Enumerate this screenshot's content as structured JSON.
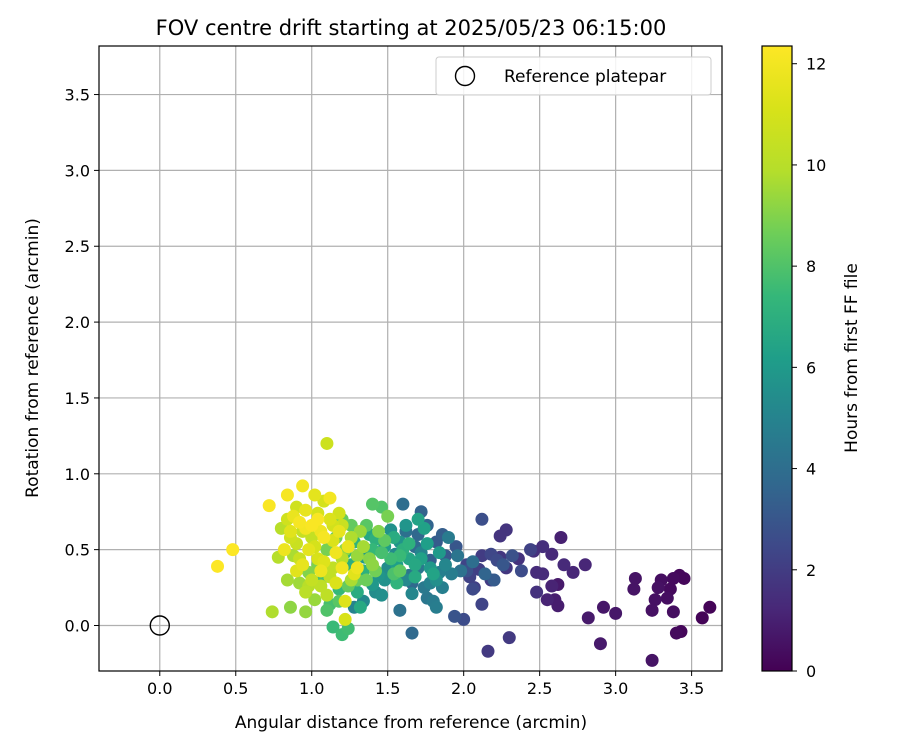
{
  "chart_data": {
    "type": "scatter",
    "title": "FOV centre drift starting at 2025/05/23 06:15:00",
    "xlabel": "Angular distance from reference (arcmin)",
    "ylabel": "Rotation from reference (arcmin)",
    "xlim": [
      -0.4,
      3.7
    ],
    "ylim": [
      -0.3,
      3.82
    ],
    "xticks": [
      0.0,
      0.5,
      1.0,
      1.5,
      2.0,
      2.5,
      3.0,
      3.5
    ],
    "yticks": [
      0.0,
      0.5,
      1.0,
      1.5,
      2.0,
      2.5,
      3.0,
      3.5
    ],
    "grid": true,
    "legend": {
      "position": "top-right",
      "entries": [
        {
          "label": "Reference platepar",
          "marker": "open-circle"
        }
      ]
    },
    "reference_point": {
      "x": 0.0,
      "y": 0.0
    },
    "colorbar": {
      "label": "Hours from first FF file",
      "colormap": "viridis",
      "range": [
        0,
        12.35
      ],
      "ticks": [
        0,
        2,
        4,
        6,
        8,
        10,
        12
      ]
    },
    "points": [
      {
        "x": 3.62,
        "y": 0.12,
        "c": 0.1
      },
      {
        "x": 3.57,
        "y": 0.05,
        "c": 0.1
      },
      {
        "x": 3.45,
        "y": 0.31,
        "c": 0.2
      },
      {
        "x": 3.42,
        "y": 0.33,
        "c": 0.2
      },
      {
        "x": 3.43,
        "y": -0.04,
        "c": 0.2
      },
      {
        "x": 3.4,
        "y": -0.05,
        "c": 0.3
      },
      {
        "x": 3.38,
        "y": 0.31,
        "c": 0.3
      },
      {
        "x": 3.36,
        "y": 0.24,
        "c": 0.3
      },
      {
        "x": 3.38,
        "y": 0.09,
        "c": 0.4
      },
      {
        "x": 3.34,
        "y": 0.18,
        "c": 0.4
      },
      {
        "x": 3.3,
        "y": 0.3,
        "c": 0.4
      },
      {
        "x": 3.28,
        "y": 0.25,
        "c": 0.5
      },
      {
        "x": 3.26,
        "y": 0.17,
        "c": 0.5
      },
      {
        "x": 3.24,
        "y": 0.1,
        "c": 0.5
      },
      {
        "x": 3.24,
        "y": -0.23,
        "c": 0.6
      },
      {
        "x": 3.13,
        "y": 0.31,
        "c": 0.6
      },
      {
        "x": 3.12,
        "y": 0.24,
        "c": 0.6
      },
      {
        "x": 3.0,
        "y": 0.08,
        "c": 0.7
      },
      {
        "x": 2.92,
        "y": 0.12,
        "c": 0.7
      },
      {
        "x": 2.9,
        "y": -0.12,
        "c": 0.8
      },
      {
        "x": 2.82,
        "y": 0.05,
        "c": 0.8
      },
      {
        "x": 2.62,
        "y": 0.27,
        "c": 0.8
      },
      {
        "x": 2.62,
        "y": 0.13,
        "c": 0.9
      },
      {
        "x": 2.6,
        "y": 0.17,
        "c": 0.9
      },
      {
        "x": 2.64,
        "y": 0.58,
        "c": 1.0
      },
      {
        "x": 2.58,
        "y": 0.26,
        "c": 1.1
      },
      {
        "x": 2.55,
        "y": 0.17,
        "c": 1.1
      },
      {
        "x": 2.8,
        "y": 0.4,
        "c": 1.2
      },
      {
        "x": 2.72,
        "y": 0.35,
        "c": 1.2
      },
      {
        "x": 2.66,
        "y": 0.4,
        "c": 1.3
      },
      {
        "x": 2.58,
        "y": 0.47,
        "c": 1.3
      },
      {
        "x": 2.52,
        "y": 0.34,
        "c": 1.4
      },
      {
        "x": 2.48,
        "y": 0.35,
        "c": 1.4
      },
      {
        "x": 2.52,
        "y": 0.52,
        "c": 1.5
      },
      {
        "x": 2.46,
        "y": 0.49,
        "c": 1.5
      },
      {
        "x": 2.48,
        "y": 0.22,
        "c": 1.6
      },
      {
        "x": 2.36,
        "y": 0.44,
        "c": 1.6
      },
      {
        "x": 2.28,
        "y": 0.63,
        "c": 1.7
      },
      {
        "x": 2.24,
        "y": 0.59,
        "c": 1.7
      },
      {
        "x": 2.28,
        "y": 0.38,
        "c": 1.8
      },
      {
        "x": 2.24,
        "y": 0.45,
        "c": 1.8
      },
      {
        "x": 2.3,
        "y": -0.08,
        "c": 1.9
      },
      {
        "x": 2.16,
        "y": -0.17,
        "c": 1.9
      },
      {
        "x": 2.18,
        "y": 0.3,
        "c": 2.0
      },
      {
        "x": 2.12,
        "y": 0.46,
        "c": 2.0
      },
      {
        "x": 2.1,
        "y": 0.37,
        "c": 2.1
      },
      {
        "x": 2.07,
        "y": 0.25,
        "c": 2.1
      },
      {
        "x": 2.04,
        "y": 0.32,
        "c": 2.2
      },
      {
        "x": 2.02,
        "y": 0.4,
        "c": 2.3
      },
      {
        "x": 2.12,
        "y": 0.14,
        "c": 2.3
      },
      {
        "x": 2.18,
        "y": 0.47,
        "c": 2.4
      },
      {
        "x": 2.22,
        "y": 0.43,
        "c": 2.5
      },
      {
        "x": 2.06,
        "y": 0.24,
        "c": 2.5
      },
      {
        "x": 2.0,
        "y": 0.04,
        "c": 2.6
      },
      {
        "x": 2.12,
        "y": 0.7,
        "c": 2.7
      },
      {
        "x": 2.02,
        "y": 0.36,
        "c": 2.8
      },
      {
        "x": 1.94,
        "y": 0.06,
        "c": 2.9
      },
      {
        "x": 1.95,
        "y": 0.52,
        "c": 3.0
      },
      {
        "x": 1.88,
        "y": 0.46,
        "c": 3.1
      },
      {
        "x": 1.82,
        "y": 0.55,
        "c": 3.2
      },
      {
        "x": 1.86,
        "y": 0.6,
        "c": 3.3
      },
      {
        "x": 1.78,
        "y": 0.43,
        "c": 3.4
      },
      {
        "x": 1.72,
        "y": 0.75,
        "c": 3.5
      },
      {
        "x": 1.76,
        "y": 0.66,
        "c": 3.6
      },
      {
        "x": 1.7,
        "y": 0.6,
        "c": 3.7
      },
      {
        "x": 1.66,
        "y": -0.05,
        "c": 3.8
      },
      {
        "x": 1.68,
        "y": 0.52,
        "c": 3.9
      },
      {
        "x": 1.6,
        "y": 0.8,
        "c": 4.0
      },
      {
        "x": 1.62,
        "y": 0.62,
        "c": 4.1
      },
      {
        "x": 1.58,
        "y": 0.1,
        "c": 4.2
      },
      {
        "x": 1.64,
        "y": 0.33,
        "c": 4.3
      },
      {
        "x": 1.7,
        "y": 0.38,
        "c": 4.4
      },
      {
        "x": 1.74,
        "y": 0.25,
        "c": 4.5
      },
      {
        "x": 1.8,
        "y": 0.16,
        "c": 4.6
      },
      {
        "x": 1.82,
        "y": 0.12,
        "c": 4.7
      },
      {
        "x": 1.84,
        "y": 0.35,
        "c": 4.8
      },
      {
        "x": 1.78,
        "y": 0.28,
        "c": 4.9
      },
      {
        "x": 1.72,
        "y": 0.48,
        "c": 5.0
      },
      {
        "x": 1.66,
        "y": 0.21,
        "c": 5.1
      },
      {
        "x": 1.62,
        "y": 0.3,
        "c": 5.2
      },
      {
        "x": 1.55,
        "y": 0.47,
        "c": 5.3
      },
      {
        "x": 1.5,
        "y": 0.38,
        "c": 5.4
      },
      {
        "x": 1.46,
        "y": 0.2,
        "c": 5.5
      },
      {
        "x": 1.52,
        "y": 0.63,
        "c": 5.6
      },
      {
        "x": 1.58,
        "y": 0.55,
        "c": 5.7
      },
      {
        "x": 1.44,
        "y": 0.33,
        "c": 5.8
      },
      {
        "x": 1.4,
        "y": 0.27,
        "c": 5.9
      },
      {
        "x": 1.35,
        "y": 0.45,
        "c": 6.0
      },
      {
        "x": 1.48,
        "y": 0.52,
        "c": 6.1
      },
      {
        "x": 1.56,
        "y": 0.4,
        "c": 6.2
      },
      {
        "x": 1.74,
        "y": 0.64,
        "c": 6.3
      },
      {
        "x": 1.8,
        "y": 0.34,
        "c": 6.4
      },
      {
        "x": 1.64,
        "y": 0.44,
        "c": 6.5
      },
      {
        "x": 1.38,
        "y": 0.6,
        "c": 6.6
      },
      {
        "x": 1.32,
        "y": 0.12,
        "c": 6.7
      },
      {
        "x": 1.3,
        "y": 0.22,
        "c": 6.8
      },
      {
        "x": 1.26,
        "y": 0.4,
        "c": 6.9
      },
      {
        "x": 1.42,
        "y": 0.57,
        "c": 7.0
      },
      {
        "x": 1.34,
        "y": 0.36,
        "c": 7.1
      },
      {
        "x": 1.28,
        "y": 0.55,
        "c": 7.2
      },
      {
        "x": 1.22,
        "y": 0.48,
        "c": 7.3
      },
      {
        "x": 1.18,
        "y": 0.24,
        "c": 7.4
      },
      {
        "x": 1.14,
        "y": -0.01,
        "c": 7.5
      },
      {
        "x": 1.2,
        "y": -0.06,
        "c": 7.6
      },
      {
        "x": 1.24,
        "y": -0.02,
        "c": 7.7
      },
      {
        "x": 1.12,
        "y": 0.14,
        "c": 7.8
      },
      {
        "x": 1.08,
        "y": 0.32,
        "c": 7.9
      },
      {
        "x": 1.46,
        "y": 0.78,
        "c": 8.0
      },
      {
        "x": 1.4,
        "y": 0.8,
        "c": 8.1
      },
      {
        "x": 1.36,
        "y": 0.66,
        "c": 8.2
      },
      {
        "x": 1.58,
        "y": 0.36,
        "c": 8.3
      },
      {
        "x": 1.26,
        "y": 0.66,
        "c": 8.4
      },
      {
        "x": 1.2,
        "y": 0.7,
        "c": 8.5
      },
      {
        "x": 1.3,
        "y": 0.3,
        "c": 8.6
      },
      {
        "x": 1.16,
        "y": 0.58,
        "c": 8.7
      },
      {
        "x": 1.1,
        "y": 0.5,
        "c": 8.8
      },
      {
        "x": 1.04,
        "y": 0.4,
        "c": 8.9
      },
      {
        "x": 0.98,
        "y": 0.35,
        "c": 9.0
      },
      {
        "x": 1.22,
        "y": 0.5,
        "c": 9.1
      },
      {
        "x": 0.86,
        "y": 0.12,
        "c": 9.2
      },
      {
        "x": 0.96,
        "y": 0.09,
        "c": 9.3
      },
      {
        "x": 1.02,
        "y": 0.17,
        "c": 9.4
      },
      {
        "x": 0.92,
        "y": 0.28,
        "c": 9.5
      },
      {
        "x": 0.84,
        "y": 0.3,
        "c": 9.6
      },
      {
        "x": 0.88,
        "y": 0.46,
        "c": 9.7
      },
      {
        "x": 0.74,
        "y": 0.09,
        "c": 9.8
      },
      {
        "x": 0.78,
        "y": 0.45,
        "c": 9.9
      },
      {
        "x": 0.8,
        "y": 0.64,
        "c": 10.0
      },
      {
        "x": 0.96,
        "y": 0.22,
        "c": 10.1
      },
      {
        "x": 1.06,
        "y": 0.26,
        "c": 10.2
      },
      {
        "x": 1.12,
        "y": 0.32,
        "c": 10.3
      },
      {
        "x": 1.0,
        "y": 0.58,
        "c": 10.4
      },
      {
        "x": 0.94,
        "y": 0.62,
        "c": 10.5
      },
      {
        "x": 0.9,
        "y": 0.54,
        "c": 10.6
      },
      {
        "x": 1.1,
        "y": 1.2,
        "c": 10.7
      },
      {
        "x": 0.84,
        "y": 0.7,
        "c": 10.8
      },
      {
        "x": 1.18,
        "y": 0.74,
        "c": 10.9
      },
      {
        "x": 1.08,
        "y": 0.82,
        "c": 11.0
      },
      {
        "x": 1.04,
        "y": 0.44,
        "c": 11.1
      },
      {
        "x": 1.14,
        "y": 0.56,
        "c": 11.2
      },
      {
        "x": 1.22,
        "y": 0.16,
        "c": 11.3
      },
      {
        "x": 1.28,
        "y": 0.34,
        "c": 11.4
      },
      {
        "x": 1.02,
        "y": 0.86,
        "c": 11.5
      },
      {
        "x": 0.96,
        "y": 0.76,
        "c": 11.6
      },
      {
        "x": 0.88,
        "y": 0.72,
        "c": 11.7
      },
      {
        "x": 0.82,
        "y": 0.5,
        "c": 11.8
      },
      {
        "x": 1.06,
        "y": 0.62,
        "c": 11.9
      },
      {
        "x": 0.94,
        "y": 0.92,
        "c": 12.0
      },
      {
        "x": 0.84,
        "y": 0.86,
        "c": 12.1
      },
      {
        "x": 0.72,
        "y": 0.79,
        "c": 12.2
      },
      {
        "x": 0.48,
        "y": 0.5,
        "c": 12.3
      },
      {
        "x": 0.38,
        "y": 0.39,
        "c": 12.3
      },
      {
        "x": 1.0,
        "y": 0.66,
        "c": 12.2
      },
      {
        "x": 0.92,
        "y": 0.68,
        "c": 12.1
      },
      {
        "x": 1.12,
        "y": 0.84,
        "c": 12.0
      },
      {
        "x": 1.2,
        "y": 0.38,
        "c": 11.9
      },
      {
        "x": 1.3,
        "y": 0.38,
        "c": 11.8
      },
      {
        "x": 1.24,
        "y": 0.52,
        "c": 11.7
      },
      {
        "x": 1.18,
        "y": 0.62,
        "c": 11.6
      },
      {
        "x": 0.98,
        "y": 0.5,
        "c": 11.5
      },
      {
        "x": 0.9,
        "y": 0.36,
        "c": 11.4
      },
      {
        "x": 1.08,
        "y": 0.42,
        "c": 11.3
      },
      {
        "x": 1.16,
        "y": 0.28,
        "c": 11.2
      },
      {
        "x": 1.22,
        "y": 0.04,
        "c": 11.1
      },
      {
        "x": 1.04,
        "y": 0.74,
        "c": 11.0
      },
      {
        "x": 1.14,
        "y": 0.66,
        "c": 10.9
      },
      {
        "x": 0.86,
        "y": 0.58,
        "c": 10.8
      },
      {
        "x": 0.92,
        "y": 0.44,
        "c": 10.6
      },
      {
        "x": 1.0,
        "y": 0.3,
        "c": 10.4
      },
      {
        "x": 1.1,
        "y": 0.2,
        "c": 10.2
      },
      {
        "x": 1.2,
        "y": 0.44,
        "c": 10.0
      },
      {
        "x": 1.26,
        "y": 0.58,
        "c": 9.8
      },
      {
        "x": 1.34,
        "y": 0.52,
        "c": 9.6
      },
      {
        "x": 1.3,
        "y": 0.46,
        "c": 9.4
      },
      {
        "x": 1.4,
        "y": 0.4,
        "c": 9.2
      },
      {
        "x": 1.44,
        "y": 0.62,
        "c": 9.0
      },
      {
        "x": 1.5,
        "y": 0.72,
        "c": 8.8
      },
      {
        "x": 1.36,
        "y": 0.3,
        "c": 8.6
      },
      {
        "x": 1.24,
        "y": 0.26,
        "c": 8.4
      },
      {
        "x": 1.18,
        "y": 0.16,
        "c": 8.2
      },
      {
        "x": 1.1,
        "y": 0.1,
        "c": 8.0
      },
      {
        "x": 1.46,
        "y": 0.48,
        "c": 7.8
      },
      {
        "x": 1.52,
        "y": 0.44,
        "c": 7.6
      },
      {
        "x": 1.4,
        "y": 0.5,
        "c": 7.4
      },
      {
        "x": 1.56,
        "y": 0.28,
        "c": 7.2
      },
      {
        "x": 1.6,
        "y": 0.5,
        "c": 7.0
      },
      {
        "x": 1.54,
        "y": 0.58,
        "c": 6.8
      },
      {
        "x": 1.68,
        "y": 0.4,
        "c": 6.6
      },
      {
        "x": 1.7,
        "y": 0.7,
        "c": 6.4
      },
      {
        "x": 1.76,
        "y": 0.54,
        "c": 6.2
      },
      {
        "x": 1.84,
        "y": 0.48,
        "c": 6.0
      },
      {
        "x": 1.62,
        "y": 0.66,
        "c": 5.8
      },
      {
        "x": 1.48,
        "y": 0.3,
        "c": 5.6
      },
      {
        "x": 1.42,
        "y": 0.22,
        "c": 5.4
      },
      {
        "x": 1.34,
        "y": 0.16,
        "c": 5.2
      },
      {
        "x": 1.28,
        "y": 0.12,
        "c": 5.0
      },
      {
        "x": 1.86,
        "y": 0.25,
        "c": 4.8
      },
      {
        "x": 1.9,
        "y": 0.58,
        "c": 4.6
      },
      {
        "x": 1.76,
        "y": 0.18,
        "c": 4.4
      },
      {
        "x": 1.98,
        "y": 0.36,
        "c": 4.2
      },
      {
        "x": 2.06,
        "y": 0.42,
        "c": 4.0
      },
      {
        "x": 1.66,
        "y": 0.28,
        "c": 3.8
      },
      {
        "x": 2.14,
        "y": 0.34,
        "c": 3.6
      },
      {
        "x": 2.2,
        "y": 0.3,
        "c": 3.2
      },
      {
        "x": 2.26,
        "y": 0.4,
        "c": 3.0
      },
      {
        "x": 2.32,
        "y": 0.46,
        "c": 2.8
      },
      {
        "x": 2.38,
        "y": 0.36,
        "c": 2.6
      },
      {
        "x": 2.44,
        "y": 0.5,
        "c": 2.2
      },
      {
        "x": 1.04,
        "y": 0.7,
        "c": 12.2
      },
      {
        "x": 1.08,
        "y": 0.58,
        "c": 12.1
      },
      {
        "x": 0.96,
        "y": 0.64,
        "c": 12.0
      },
      {
        "x": 1.16,
        "y": 0.48,
        "c": 11.9
      },
      {
        "x": 1.06,
        "y": 0.36,
        "c": 11.8
      },
      {
        "x": 0.94,
        "y": 0.4,
        "c": 11.6
      },
      {
        "x": 0.86,
        "y": 0.62,
        "c": 11.4
      },
      {
        "x": 1.12,
        "y": 0.7,
        "c": 11.2
      },
      {
        "x": 1.02,
        "y": 0.52,
        "c": 11.0
      },
      {
        "x": 0.9,
        "y": 0.78,
        "c": 10.8
      },
      {
        "x": 1.2,
        "y": 0.66,
        "c": 10.6
      },
      {
        "x": 1.14,
        "y": 0.38,
        "c": 10.3
      },
      {
        "x": 0.98,
        "y": 0.26,
        "c": 10.0
      },
      {
        "x": 1.26,
        "y": 0.3,
        "c": 9.7
      },
      {
        "x": 1.32,
        "y": 0.62,
        "c": 9.4
      },
      {
        "x": 1.38,
        "y": 0.44,
        "c": 9.1
      },
      {
        "x": 1.42,
        "y": 0.36,
        "c": 8.7
      },
      {
        "x": 1.48,
        "y": 0.56,
        "c": 8.3
      },
      {
        "x": 1.54,
        "y": 0.34,
        "c": 7.9
      },
      {
        "x": 1.58,
        "y": 0.46,
        "c": 7.5
      },
      {
        "x": 1.64,
        "y": 0.54,
        "c": 7.1
      },
      {
        "x": 1.68,
        "y": 0.32,
        "c": 6.7
      },
      {
        "x": 1.72,
        "y": 0.44,
        "c": 6.3
      },
      {
        "x": 1.78,
        "y": 0.38,
        "c": 5.9
      },
      {
        "x": 1.82,
        "y": 0.3,
        "c": 5.5
      },
      {
        "x": 1.88,
        "y": 0.4,
        "c": 5.1
      },
      {
        "x": 1.92,
        "y": 0.34,
        "c": 4.7
      },
      {
        "x": 1.96,
        "y": 0.46,
        "c": 4.3
      }
    ]
  }
}
